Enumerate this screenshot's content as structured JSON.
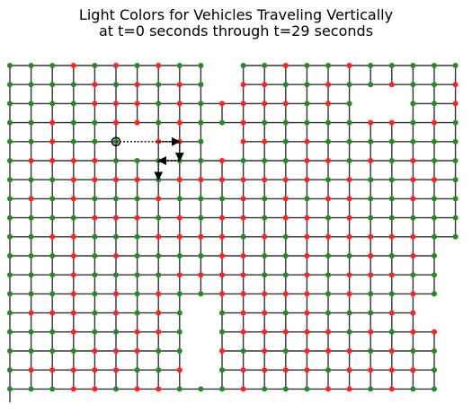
{
  "title": {
    "line1": "Light Colors for Vehicles Traveling Vertically",
    "line2": "at t=0 seconds through t=29 seconds"
  },
  "colors": {
    "green_light": "#228b22",
    "red_light": "#ff2020",
    "road": "#333333",
    "route": "#000000"
  },
  "grid": {
    "columns": 22,
    "rows": 18,
    "light_codes": "G = green light, R = red light, . = no intersection",
    "lights": [
      "GGGRGRGRGG.GGRGGRGGGGG",
      "GGGGRGRGRG.RRGGRGGRGGR",
      "GGGGRRRGRGRRRRGRG..GGR",
      "GGRGGRRGRGGRGGGGGRRGRG",
      "GGRGGG.RRG.RRGRGGGGGGG",
      "GRRRRGGGGGRGGGRRGRGRGG",
      "GGGRRRRGRRRRRRRGRGGRRG",
      "GRGRGGGRGGGRGRGRRGGRGG",
      "GGGGRRRGRGRRGRRGRGGGGG",
      "GGRRGGGRRRRGRGRRRRRRGG",
      "GGGRGRGGGGRRGGRGGRGRG.",
      "GGGRGGGGRRRRGGRGRRRGG.",
      "GGGRGRGRGGRRRRRGRGGRG.",
      "GRRRGRGRG.GRRGRGGGRR..",
      "GGGRGGRRG.GRRRRRGRGRR.",
      "GGGGRRRGG.RGRGRRRGRGG.",
      "GRRRRRGGR.GRRRRGRRRRG.",
      "GGGRRGRRGGGRGGGRRGRGG."
    ]
  },
  "route": {
    "start": {
      "col": 5,
      "row": 4
    },
    "moves": [
      "right",
      "right",
      "right",
      "down",
      "left",
      "down"
    ]
  }
}
